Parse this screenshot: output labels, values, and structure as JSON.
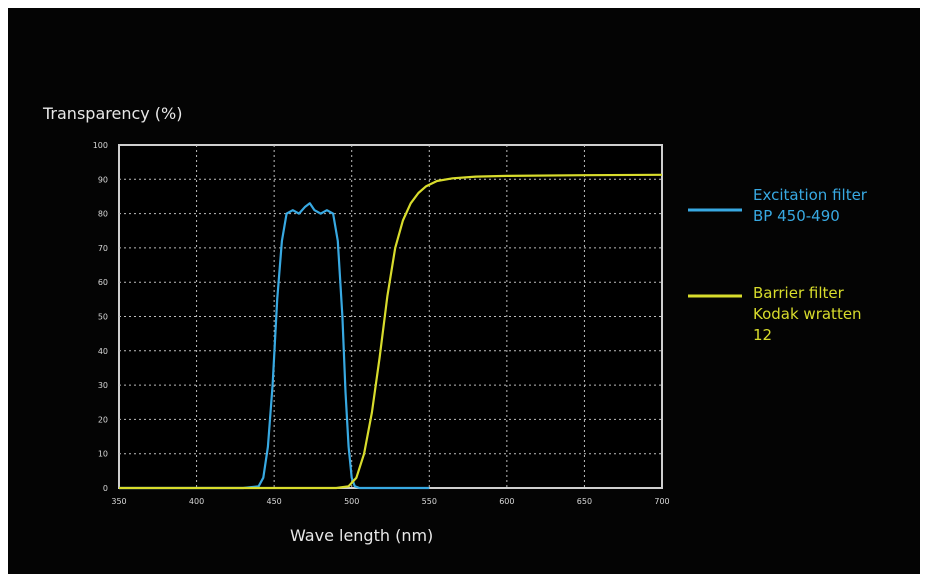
{
  "chart_data": {
    "type": "line",
    "title": "",
    "ylabel": "Transparency (%)",
    "xlabel": "Wave length (nm)",
    "xlim": [
      350,
      700
    ],
    "ylim": [
      0,
      100
    ],
    "xticks": [
      350,
      400,
      450,
      500,
      550,
      600,
      650,
      700
    ],
    "yticks": [
      0,
      10,
      20,
      30,
      40,
      50,
      60,
      70,
      80,
      90,
      100
    ],
    "grid": true,
    "legend_position": "right",
    "series": [
      {
        "name": "Excitation filter BP 450-490",
        "legend_lines": [
          "Excitation filter",
          "BP 450-490"
        ],
        "color": "#38a9e2",
        "x": [
          350,
          430,
          440,
          443,
          446,
          449,
          452,
          455,
          458,
          462,
          466,
          470,
          473,
          476,
          480,
          484,
          488,
          491,
          494,
          496,
          498,
          500,
          502,
          505,
          550
        ],
        "y": [
          0,
          0,
          0.5,
          3,
          12,
          30,
          55,
          72,
          80,
          81,
          80,
          82,
          83,
          81,
          80,
          81,
          80,
          72,
          50,
          28,
          12,
          3,
          0.5,
          0,
          0
        ]
      },
      {
        "name": "Barrier filter Kodak wratten 12",
        "legend_lines": [
          "Barrier filter",
          "Kodak wratten",
          "12"
        ],
        "color": "#d8dc2c",
        "x": [
          350,
          490,
          498,
          503,
          508,
          513,
          518,
          523,
          528,
          533,
          538,
          543,
          548,
          555,
          565,
          580,
          600,
          650,
          700
        ],
        "y": [
          0,
          0,
          0.5,
          3,
          10,
          22,
          38,
          56,
          70,
          78,
          83,
          86,
          88,
          89.5,
          90.3,
          90.8,
          91,
          91.2,
          91.3
        ]
      }
    ]
  }
}
